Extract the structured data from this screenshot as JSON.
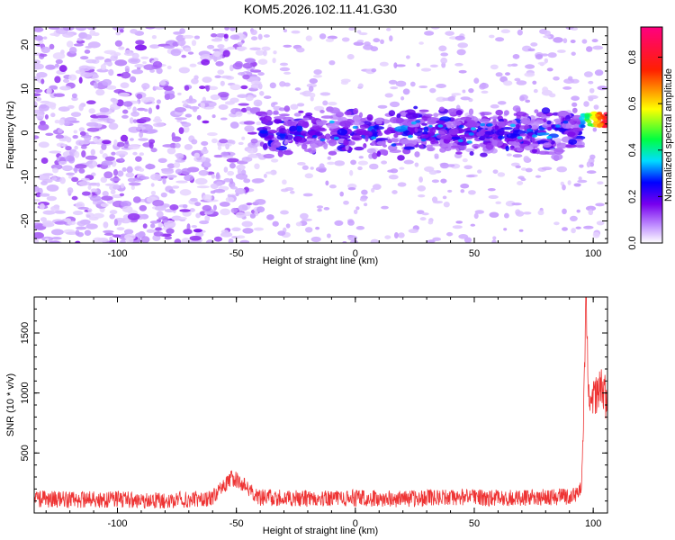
{
  "title": "KOM5.2026.102.11.41.G30",
  "chart_data": [
    {
      "type": "heatmap",
      "xlabel": "Height of straight line (km)",
      "ylabel": "Frequency (Hz)",
      "xlim": [
        -135,
        106
      ],
      "ylim": [
        -25,
        24
      ],
      "xticks": [
        -100,
        -50,
        0,
        50,
        100
      ],
      "yticks": [
        -20,
        -10,
        0,
        10,
        20
      ],
      "colorbar": {
        "label": "Normalized spectral amplitude",
        "range": [
          0,
          0.93
        ],
        "ticks": [
          0.0,
          0.2,
          0.4,
          0.6,
          0.8
        ],
        "tick_labels": [
          "0.0",
          "0.2",
          "0.4",
          "0.6",
          "0.8"
        ],
        "colormap": [
          "#ffffff",
          "#8800ff",
          "#0000ff",
          "#00ffff",
          "#00ff00",
          "#ffff00",
          "#ff0000",
          "#ff00aa"
        ]
      },
      "features": [
        {
          "x_range": [
            -135,
            -40
          ],
          "frequency_range": [
            -25,
            24
          ],
          "amplitude_range": [
            0.0,
            0.15
          ],
          "description_of_pattern": "scattered"
        },
        {
          "x_range": [
            -40,
            95
          ],
          "frequency_range": [
            -6,
            6
          ],
          "amplitude_range": [
            0.1,
            0.3
          ],
          "center_frequency": 0
        },
        {
          "x_range": [
            95,
            106
          ],
          "frequency_range": [
            1,
            5
          ],
          "amplitude_range": [
            0.3,
            0.93
          ],
          "center_frequency": 3
        }
      ]
    },
    {
      "type": "line",
      "xlabel": "Height of straight line (km)",
      "ylabel": "SNR (10 * v/v)",
      "xlim": [
        -135,
        106
      ],
      "ylim": [
        0,
        1800
      ],
      "xticks": [
        -100,
        -50,
        0,
        50,
        100
      ],
      "yticks": [
        500,
        1000,
        1500
      ],
      "color": "#ee3333",
      "series": [
        {
          "x": [
            -135,
            -120,
            -100,
            -80,
            -60,
            -52,
            -40,
            -20,
            0,
            20,
            40,
            60,
            80,
            92,
            95,
            96,
            97,
            98,
            100,
            104,
            106
          ],
          "y": [
            120,
            110,
            115,
            105,
            125,
            300,
            130,
            120,
            125,
            115,
            130,
            125,
            130,
            140,
            200,
            800,
            1800,
            1000,
            950,
            1050,
            900
          ]
        }
      ]
    }
  ]
}
